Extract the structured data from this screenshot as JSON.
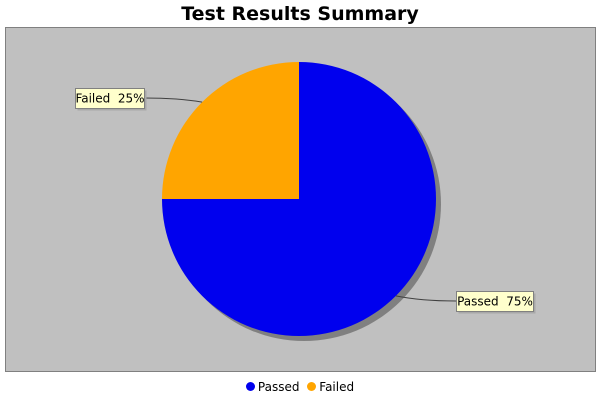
{
  "chart_data": {
    "type": "pie",
    "title": "Test Results Summary",
    "series": [
      {
        "name": "",
        "slices": [
          {
            "label": "Passed",
            "value": 75,
            "color": "#0000ee",
            "label_text": "Passed  75%"
          },
          {
            "label": "Failed",
            "value": 25,
            "color": "#ffa500",
            "label_text": "Failed  25%"
          }
        ]
      }
    ],
    "legend": {
      "placement": "bottom",
      "entries": [
        "Passed",
        "Failed"
      ]
    },
    "plot_background": "#c0c0c0",
    "label_box_color": "#ffffcc"
  }
}
